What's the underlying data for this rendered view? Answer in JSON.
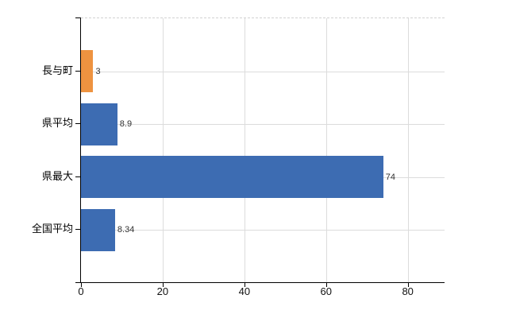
{
  "chart_data": {
    "type": "bar",
    "orientation": "horizontal",
    "title": "",
    "categories": [
      "長与町",
      "県平均",
      "県最大",
      "全国平均"
    ],
    "values": [
      3,
      8.9,
      74,
      8.34
    ],
    "value_labels": [
      "3",
      "8.9",
      "74",
      "8.34"
    ],
    "series_colors": [
      "#EE9340",
      "#3D6CB2",
      "#3D6CB2",
      "#3D6CB2"
    ],
    "x_ticks": [
      "0",
      "20",
      "40",
      "60",
      "80"
    ],
    "x_tick_values": [
      0,
      20,
      40,
      60,
      80
    ],
    "xlim": [
      0,
      89
    ],
    "grid": "on",
    "legend": "none",
    "colors": {
      "bar_highlight": "#EE9340",
      "bar_default": "#3D6CB2",
      "grid": "#dcdcdc",
      "top_border": "#d2d2d2",
      "axis": "#000000",
      "value_label": "#333333",
      "tick_label": "#111111",
      "background": "#ffffff"
    }
  }
}
